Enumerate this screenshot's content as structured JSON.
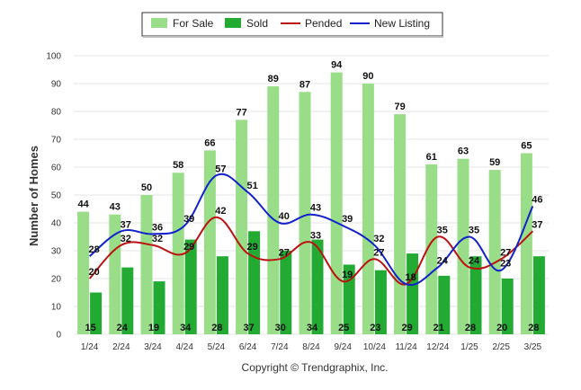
{
  "chart_data": {
    "type": "bar",
    "ylabel": "Number of Homes",
    "ylim": [
      0,
      100
    ],
    "yticks": [
      0,
      10,
      20,
      30,
      40,
      50,
      60,
      70,
      80,
      90,
      100
    ],
    "categories": [
      "1/24",
      "2/24",
      "3/24",
      "4/24",
      "5/24",
      "6/24",
      "7/24",
      "8/24",
      "9/24",
      "10/24",
      "11/24",
      "12/24",
      "1/25",
      "2/25",
      "3/25"
    ],
    "series": [
      {
        "name": "For Sale",
        "kind": "bar",
        "color": "#99dd88",
        "values": [
          44,
          43,
          50,
          58,
          66,
          77,
          89,
          87,
          94,
          90,
          79,
          61,
          63,
          59,
          65
        ]
      },
      {
        "name": "Sold",
        "kind": "bar",
        "color": "#22aa33",
        "values": [
          15,
          24,
          19,
          34,
          28,
          37,
          30,
          34,
          25,
          23,
          29,
          21,
          28,
          20,
          28
        ]
      },
      {
        "name": "Pended",
        "kind": "line",
        "color": "#bb1111",
        "values": [
          20,
          32,
          32,
          29,
          42,
          29,
          27,
          33,
          19,
          27,
          18,
          35,
          24,
          27,
          37
        ]
      },
      {
        "name": "New Listing",
        "kind": "line",
        "color": "#1122cc",
        "values": [
          28,
          37,
          36,
          39,
          57,
          51,
          40,
          43,
          39,
          32,
          18,
          24,
          35,
          23,
          46
        ]
      }
    ],
    "legend_position": "top-center",
    "grid": true
  },
  "footer": {
    "copyright": "Copyright © Trendgraphix, Inc."
  }
}
